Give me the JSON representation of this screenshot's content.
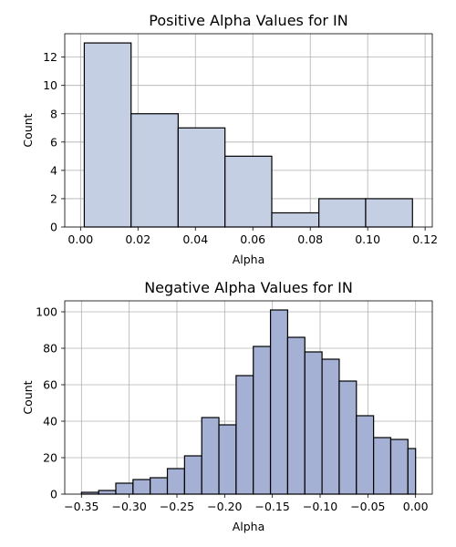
{
  "chart_data": [
    {
      "type": "bar",
      "title": "Positive Alpha Values for IN",
      "xlabel": "Alpha",
      "ylabel": "Count",
      "color": "#c5cfe3",
      "xlim": [
        -0.0055,
        0.1225
      ],
      "ylim": [
        0,
        13.65
      ],
      "xticks": [
        0.0,
        0.02,
        0.04,
        0.06,
        0.08,
        0.1,
        0.12
      ],
      "xtick_labels": [
        "0.00",
        "0.02",
        "0.04",
        "0.06",
        "0.08",
        "0.10",
        "0.12"
      ],
      "yticks": [
        0,
        2,
        4,
        6,
        8,
        10,
        12
      ],
      "ytick_labels": [
        "0",
        "2",
        "4",
        "6",
        "8",
        "10",
        "12"
      ],
      "bins": [
        {
          "x0": 0.0013,
          "x1": 0.0176,
          "count": 13
        },
        {
          "x0": 0.0176,
          "x1": 0.034,
          "count": 8
        },
        {
          "x0": 0.034,
          "x1": 0.0503,
          "count": 7
        },
        {
          "x0": 0.0503,
          "x1": 0.0666,
          "count": 5
        },
        {
          "x0": 0.0666,
          "x1": 0.083,
          "count": 1
        },
        {
          "x0": 0.083,
          "x1": 0.0993,
          "count": 2
        },
        {
          "x0": 0.0993,
          "x1": 0.1156,
          "count": 2
        }
      ]
    },
    {
      "type": "bar",
      "title": "Negative Alpha Values for IN",
      "xlabel": "Alpha",
      "ylabel": "Count",
      "color": "#a4b0d4",
      "xlim": [
        -0.3675,
        0.0175
      ],
      "ylim": [
        0,
        106
      ],
      "xticks": [
        -0.35,
        -0.3,
        -0.25,
        -0.2,
        -0.15,
        -0.1,
        -0.05,
        0.0
      ],
      "xtick_labels": [
        "−0.35",
        "−0.30",
        "−0.25",
        "−0.20",
        "−0.15",
        "−0.10",
        "−0.05",
        "0.00"
      ],
      "yticks": [
        0,
        20,
        40,
        60,
        80,
        100
      ],
      "ytick_labels": [
        "0",
        "20",
        "40",
        "60",
        "80",
        "100"
      ],
      "bins": [
        {
          "x0": -0.35,
          "x1": -0.332,
          "count": 1
        },
        {
          "x0": -0.332,
          "x1": -0.314,
          "count": 2
        },
        {
          "x0": -0.314,
          "x1": -0.296,
          "count": 6
        },
        {
          "x0": -0.296,
          "x1": -0.278,
          "count": 8
        },
        {
          "x0": -0.278,
          "x1": -0.26,
          "count": 9
        },
        {
          "x0": -0.26,
          "x1": -0.242,
          "count": 14
        },
        {
          "x0": -0.242,
          "x1": -0.224,
          "count": 21
        },
        {
          "x0": -0.224,
          "x1": -0.206,
          "count": 42
        },
        {
          "x0": -0.206,
          "x1": -0.188,
          "count": 38
        },
        {
          "x0": -0.188,
          "x1": -0.17,
          "count": 65
        },
        {
          "x0": -0.17,
          "x1": -0.152,
          "count": 81
        },
        {
          "x0": -0.152,
          "x1": -0.134,
          "count": 101
        },
        {
          "x0": -0.134,
          "x1": -0.116,
          "count": 86
        },
        {
          "x0": -0.116,
          "x1": -0.098,
          "count": 78
        },
        {
          "x0": -0.098,
          "x1": -0.08,
          "count": 74
        },
        {
          "x0": -0.08,
          "x1": -0.062,
          "count": 62
        },
        {
          "x0": -0.062,
          "x1": -0.044,
          "count": 43
        },
        {
          "x0": -0.044,
          "x1": -0.026,
          "count": 31
        },
        {
          "x0": -0.026,
          "x1": -0.008,
          "count": 30
        },
        {
          "x0": -0.008,
          "x1": 0.0,
          "count": 25
        }
      ]
    }
  ]
}
